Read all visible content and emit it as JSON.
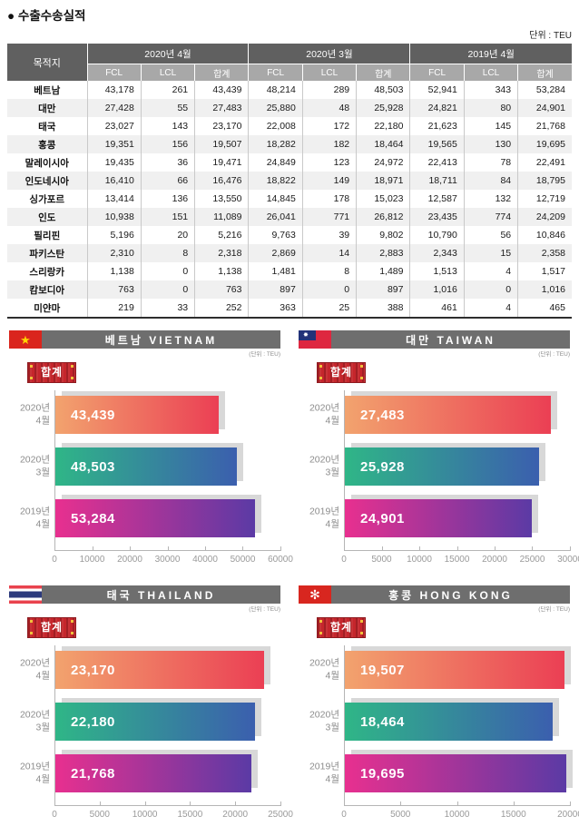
{
  "page": {
    "title": "● 수출수송실적",
    "unit_label": "단위 : TEU"
  },
  "table": {
    "dest_header": "목적지",
    "col_groups": [
      {
        "label": "2020년 4월"
      },
      {
        "label": "2020년 3월"
      },
      {
        "label": "2019년 4월"
      }
    ],
    "sub_headers": [
      "FCL",
      "LCL",
      "합계"
    ],
    "rows": [
      {
        "dest": "베트남",
        "values": [
          "43,178",
          "261",
          "43,439",
          "48,214",
          "289",
          "48,503",
          "52,941",
          "343",
          "53,284"
        ]
      },
      {
        "dest": "대만",
        "values": [
          "27,428",
          "55",
          "27,483",
          "25,880",
          "48",
          "25,928",
          "24,821",
          "80",
          "24,901"
        ]
      },
      {
        "dest": "태국",
        "values": [
          "23,027",
          "143",
          "23,170",
          "22,008",
          "172",
          "22,180",
          "21,623",
          "145",
          "21,768"
        ]
      },
      {
        "dest": "홍콩",
        "values": [
          "19,351",
          "156",
          "19,507",
          "18,282",
          "182",
          "18,464",
          "19,565",
          "130",
          "19,695"
        ]
      },
      {
        "dest": "말레이시아",
        "values": [
          "19,435",
          "36",
          "19,471",
          "24,849",
          "123",
          "24,972",
          "22,413",
          "78",
          "22,491"
        ]
      },
      {
        "dest": "인도네시아",
        "values": [
          "16,410",
          "66",
          "16,476",
          "18,822",
          "149",
          "18,971",
          "18,711",
          "84",
          "18,795"
        ]
      },
      {
        "dest": "싱가포르",
        "values": [
          "13,414",
          "136",
          "13,550",
          "14,845",
          "178",
          "15,023",
          "12,587",
          "132",
          "12,719"
        ]
      },
      {
        "dest": "인도",
        "values": [
          "10,938",
          "151",
          "11,089",
          "26,041",
          "771",
          "26,812",
          "23,435",
          "774",
          "24,209"
        ]
      },
      {
        "dest": "필리핀",
        "values": [
          "5,196",
          "20",
          "5,216",
          "9,763",
          "39",
          "9,802",
          "10,790",
          "56",
          "10,846"
        ]
      },
      {
        "dest": "파키스탄",
        "values": [
          "2,310",
          "8",
          "2,318",
          "2,869",
          "14",
          "2,883",
          "2,343",
          "15",
          "2,358"
        ]
      },
      {
        "dest": "스리랑카",
        "values": [
          "1,138",
          "0",
          "1,138",
          "1,481",
          "8",
          "1,489",
          "1,513",
          "4",
          "1,517"
        ]
      },
      {
        "dest": "캄보디아",
        "values": [
          "763",
          "0",
          "763",
          "897",
          "0",
          "897",
          "1,016",
          "0",
          "1,016"
        ]
      },
      {
        "dest": "미얀마",
        "values": [
          "219",
          "33",
          "252",
          "363",
          "25",
          "388",
          "461",
          "4",
          "465"
        ]
      }
    ]
  },
  "charts_common": {
    "unit_label": "(단위 : TEU)",
    "badge_label": "합계",
    "categories": [
      [
        "2020년",
        "4월"
      ],
      [
        "2020년",
        "3월"
      ],
      [
        "2019년",
        "4월"
      ]
    ]
  },
  "chart_data": [
    {
      "type": "bar",
      "title": "베트남  VIETNAM",
      "flag": "vietnam",
      "categories": [
        "2020년 4월",
        "2020년 3월",
        "2019년 4월"
      ],
      "values": [
        43439,
        48503,
        53284
      ],
      "xlim": [
        0,
        60000
      ],
      "xticks": [
        0,
        10000,
        20000,
        30000,
        40000,
        50000,
        60000
      ]
    },
    {
      "type": "bar",
      "title": "대만  TAIWAN",
      "flag": "taiwan",
      "categories": [
        "2020년 4월",
        "2020년 3월",
        "2019년 4월"
      ],
      "values": [
        27483,
        25928,
        24901
      ],
      "xlim": [
        0,
        30000
      ],
      "xticks": [
        0,
        5000,
        10000,
        15000,
        20000,
        25000,
        30000
      ]
    },
    {
      "type": "bar",
      "title": "태국  THAILAND",
      "flag": "thailand",
      "categories": [
        "2020년 4월",
        "2020년 3월",
        "2019년 4월"
      ],
      "values": [
        23170,
        22180,
        21768
      ],
      "xlim": [
        0,
        25000
      ],
      "xticks": [
        0,
        5000,
        10000,
        15000,
        20000,
        25000
      ]
    },
    {
      "type": "bar",
      "title": "홍콩  HONG KONG",
      "flag": "hongkong",
      "categories": [
        "2020년 4월",
        "2020년 3월",
        "2019년 4월"
      ],
      "values": [
        19507,
        18464,
        19695
      ],
      "xlim": [
        0,
        20000
      ],
      "xticks": [
        0,
        5000,
        10000,
        15000,
        20000
      ]
    }
  ],
  "colors": {
    "table_header": "#606060",
    "table_subheader": "#a8a8a8",
    "chart_header": "#6e6e6e",
    "badge_red": "#c5262c",
    "shadow": "#d8d8d8",
    "bar_gradients": [
      [
        "#f2a36e",
        "#eb3f54"
      ],
      [
        "#2fb687",
        "#3b5fae"
      ],
      [
        "#e8308f",
        "#5b3aa5"
      ]
    ],
    "flag_icons": [
      "vietnam-flag-icon",
      "taiwan-flag-icon",
      "thailand-flag-icon",
      "hongkong-flag-icon"
    ]
  }
}
